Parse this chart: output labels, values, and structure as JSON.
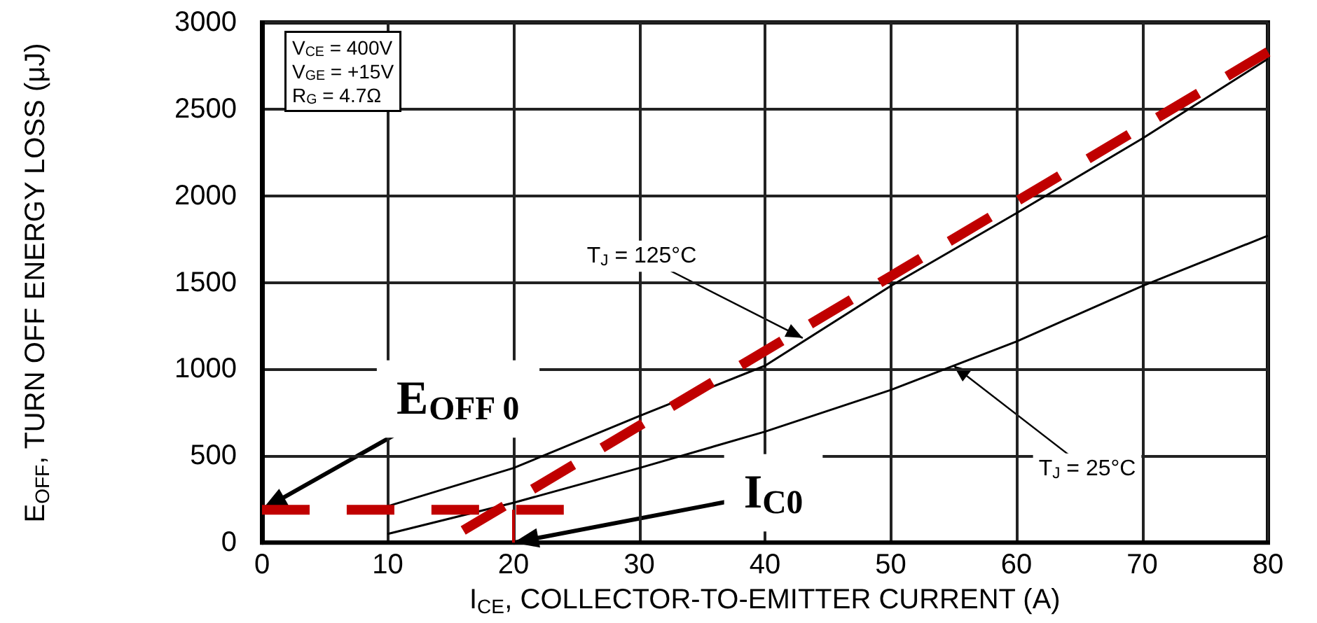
{
  "chart_data": {
    "type": "line",
    "xlabel": "I$_{CE}$, COLLECTOR-TO-EMITTER CURRENT (A)",
    "ylabel": "E$_{OFF}$, TURN OFF ENERGY LOSS (μJ)",
    "xlim": [
      0,
      80
    ],
    "xticks": [
      0,
      10,
      20,
      30,
      40,
      50,
      60,
      70,
      80
    ],
    "ylim": [
      0,
      3000
    ],
    "yticks": [
      0,
      500,
      1000,
      1500,
      2000,
      2500,
      3000
    ],
    "grid": true,
    "marker": "none",
    "series": [
      {
        "color": "#000000",
        "x": [
          10,
          20,
          30,
          40,
          50,
          60,
          70,
          80
        ],
        "values": [
          210,
          430,
          730,
          1020,
          1480,
          1900,
          2330,
          2790
        ]
      },
      {
        "color": "#000000",
        "x": [
          10,
          20,
          30,
          40,
          50,
          60,
          70,
          80
        ],
        "values": [
          50,
          230,
          430,
          640,
          880,
          1160,
          1480,
          1770
        ]
      },
      {
        "color": "#c00000",
        "line_style": "dashed",
        "x": [
          16,
          80
        ],
        "values": [
          70,
          2830
        ]
      },
      {
        "color": "#c00000",
        "line_style": "dashed",
        "x": [
          0,
          24
        ],
        "values": [
          190,
          190
        ]
      },
      {
        "color": "#c00000",
        "line_style": "dashed",
        "x": [
          20,
          20
        ],
        "values": [
          0,
          190
        ]
      }
    ],
    "annotations": [
      "V$_{CE}$ = 400V",
      "V$_{GE}$ = +15V",
      "R$_{G}$ = 4.7Ω",
      {
        "text": "T$_{J}$ = 125°C",
        "x": 43,
        "y": 1180
      },
      {
        "text": "T$_{J}$ = 25°C",
        "x": 55,
        "y": 1020
      },
      {
        "text": "E$_{OFF 0}$",
        "x": 0,
        "y": 190
      },
      {
        "text": "I$_{C0}$",
        "x": 20,
        "y": 0
      }
    ]
  }
}
